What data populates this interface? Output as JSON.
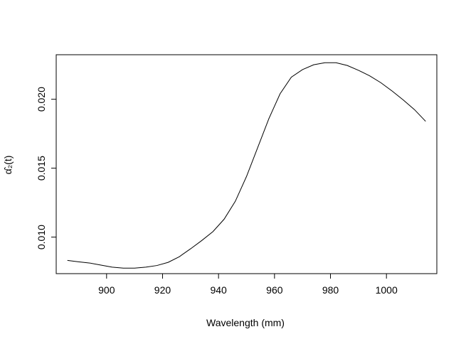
{
  "chart_data": {
    "type": "line",
    "title": "",
    "xlabel": "Wavelength (mm)",
    "ylabel": "α̂₂(t)",
    "xlim": [
      882,
      1018
    ],
    "ylim": [
      0.00735,
      0.02323
    ],
    "xticks": [
      900,
      920,
      940,
      960,
      980,
      1000
    ],
    "xtick_labels": [
      "900",
      "920",
      "940",
      "960",
      "980",
      "1000"
    ],
    "yticks": [
      0.01,
      0.015,
      0.02
    ],
    "ytick_labels": [
      "0.010",
      "0.015",
      "0.020"
    ],
    "grid": false,
    "legend": "none",
    "line_color": "#000000",
    "series": [
      {
        "x": [
          886,
          890,
          894,
          898,
          902,
          906,
          910,
          914,
          918,
          922,
          926,
          930,
          934,
          938,
          942,
          946,
          950,
          954,
          958,
          962,
          966,
          970,
          974,
          978,
          982,
          986,
          990,
          994,
          998,
          1002,
          1006,
          1010,
          1014
        ],
        "y": [
          0.00831,
          0.00821,
          0.00812,
          0.00797,
          0.00782,
          0.00775,
          0.00775,
          0.00782,
          0.00794,
          0.00817,
          0.00858,
          0.00915,
          0.00975,
          0.0104,
          0.0113,
          0.0126,
          0.0144,
          0.0165,
          0.0186,
          0.0204,
          0.0216,
          0.02215,
          0.0225,
          0.02265,
          0.02265,
          0.02245,
          0.0221,
          0.0217,
          0.0212,
          0.0206,
          0.01995,
          0.01925,
          0.0184
        ]
      }
    ]
  }
}
